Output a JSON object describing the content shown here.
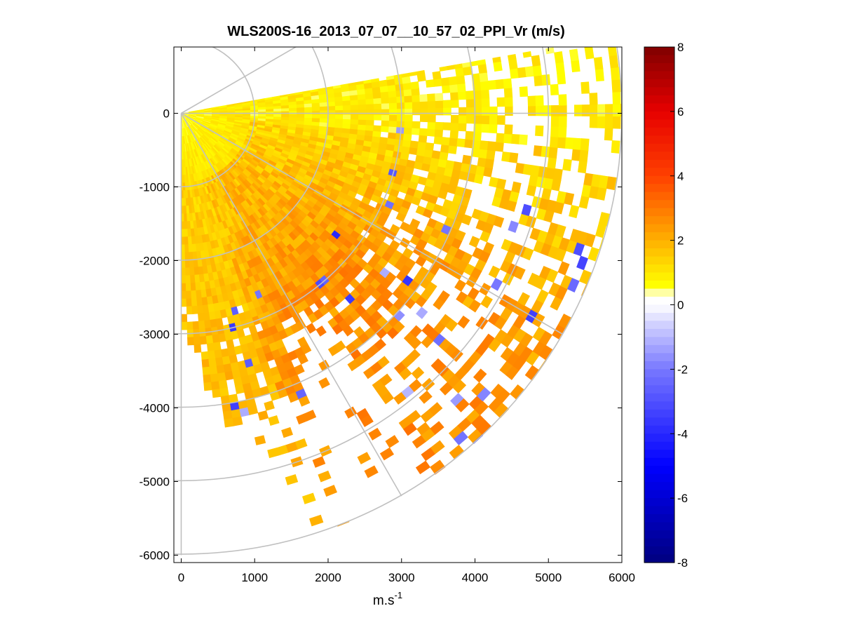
{
  "chart_data": {
    "type": "heatmap",
    "subtype": "ppi-polar-sector",
    "title": "WLS200S-16_2013_07_07__10_57_02_PPI_Vr (m/s)",
    "xlabel_base": "m.s",
    "xlabel_exp": "-1",
    "ylabel": "",
    "xlim": [
      -100,
      6000
    ],
    "ylim": [
      -6100,
      900
    ],
    "xticks": [
      0,
      1000,
      2000,
      3000,
      4000,
      5000,
      6000
    ],
    "yticks": [
      0,
      -1000,
      -2000,
      -3000,
      -4000,
      -5000,
      -6000
    ],
    "xtick_labels": [
      "0",
      "1000",
      "2000",
      "3000",
      "4000",
      "5000",
      "6000"
    ],
    "ytick_labels": [
      "0",
      "-1000",
      "-2000",
      "-3000",
      "-4000",
      "-5000",
      "-6000"
    ],
    "grid": true,
    "polar_grid": {
      "range_rings_m": [
        1000,
        2000,
        3000,
        4000,
        5000,
        6000
      ],
      "radial_spokes_deg": [
        30,
        0,
        -30,
        -60,
        -90
      ]
    },
    "sector": {
      "azimuth_start_deg": 10,
      "azimuth_end_deg": -90,
      "max_range_m": 6000
    },
    "colorbar": {
      "min": -8,
      "max": 8,
      "ticks": [
        8,
        6,
        4,
        2,
        0,
        -2,
        -4,
        -6,
        -8
      ],
      "tick_labels": [
        "8",
        "6",
        "4",
        "2",
        "0",
        "-2",
        "-4",
        "-6",
        "-8"
      ],
      "colormap": "white-centered blue-yellow-red"
    },
    "colors": {
      "grid": "#c0c0c0",
      "axis": "#000000"
    },
    "velocity_field_summary": [
      {
        "region": "near range (0-1000 m)",
        "vr_ms": 1.0
      },
      {
        "region": "mid range, southern sector",
        "vr_ms": 1.6
      },
      {
        "region": "mid range, eastern sector",
        "vr_ms": 2.4
      },
      {
        "region": "far range, east-southeast",
        "vr_ms": 2.6
      },
      {
        "region": "far range, northeast edge",
        "vr_ms": 0.9
      }
    ]
  }
}
